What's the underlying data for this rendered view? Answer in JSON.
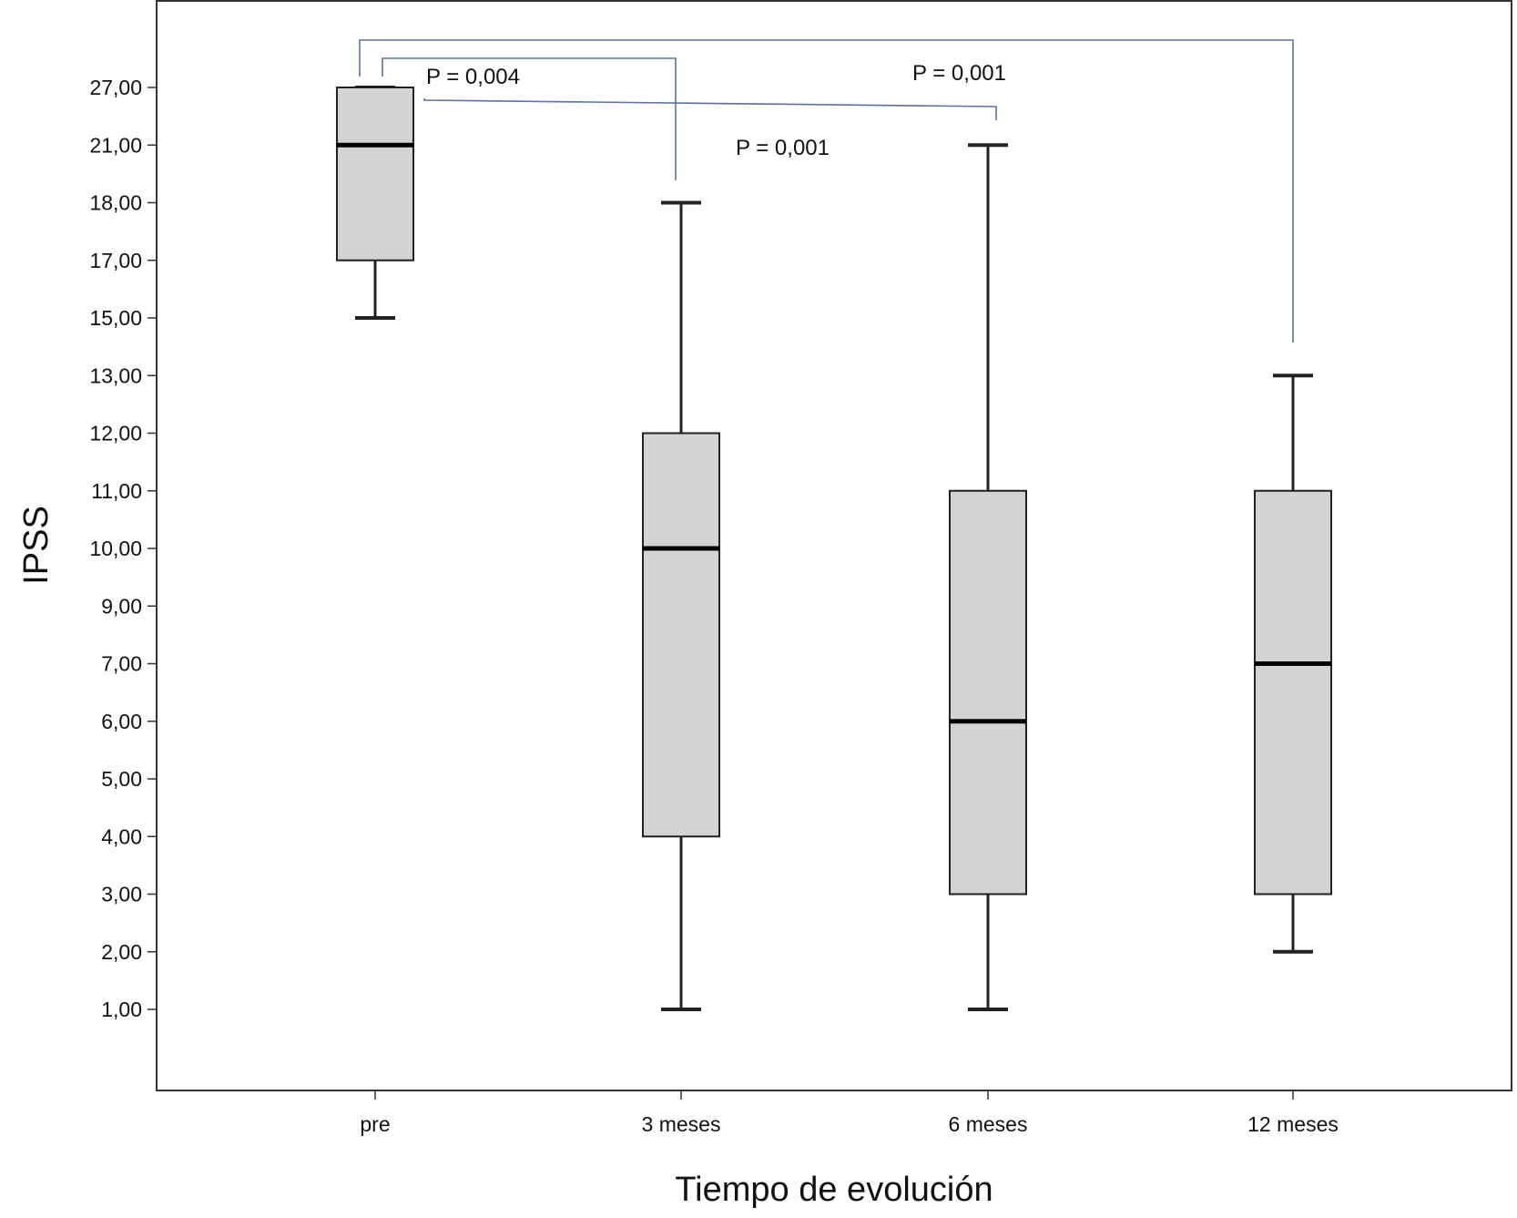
{
  "chart_data": {
    "type": "box",
    "title": "",
    "xlabel": "Tiempo de evolución",
    "ylabel": "IPSS",
    "y_tick_labels": [
      "1,00",
      "2,00",
      "3,00",
      "4,00",
      "5,00",
      "6,00",
      "7,00",
      "9,00",
      "10,00",
      "11,00",
      "12,00",
      "13,00",
      "15,00",
      "17,00",
      "18,00",
      "21,00",
      "27,00"
    ],
    "y_axis_note": "ticks are evenly spaced by rank, not by value (ordinal axis)",
    "categories": [
      "pre",
      "3 meses",
      "6 meses",
      "12 meses"
    ],
    "boxes": [
      {
        "category": "pre",
        "whisker_low": 15,
        "q1": 17,
        "median": 21,
        "q3": 27,
        "whisker_high": 27
      },
      {
        "category": "3 meses",
        "whisker_low": 1,
        "q1": 4,
        "median": 10,
        "q3": 12,
        "whisker_high": 18
      },
      {
        "category": "6 meses",
        "whisker_low": 1,
        "q1": 3,
        "median": 6,
        "q3": 11,
        "whisker_high": 21
      },
      {
        "category": "12 meses",
        "whisker_low": 2,
        "q1": 3,
        "median": 7,
        "q3": 11,
        "whisker_high": 13
      }
    ],
    "comparisons": [
      {
        "from": "pre",
        "to": "3 meses",
        "label": "P = 0,004"
      },
      {
        "from": "pre",
        "to": "6 meses",
        "label": "P = 0,001"
      },
      {
        "from": "pre",
        "to": "12 meses",
        "label": "P = 0,001"
      }
    ],
    "colors": {
      "box_fill": "#d3d3d3",
      "box_stroke": "#222222",
      "bracket": "#5a72a8",
      "axis": "#333333"
    },
    "grid": false,
    "legend": "none"
  }
}
